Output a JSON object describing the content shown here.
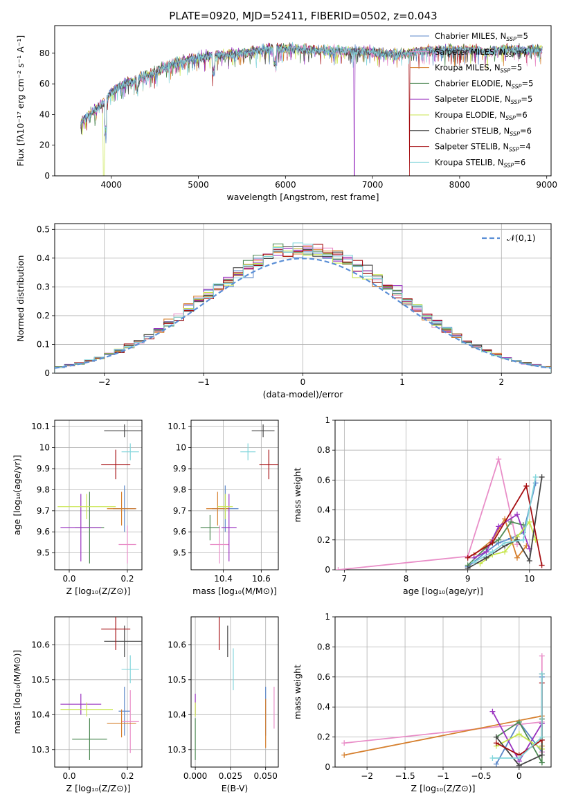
{
  "title": "PLATE=0920, MJD=52411, FIBERID=0502, z=0.043",
  "colors": [
    "#5b87c8",
    "#e98ec8",
    "#d6802f",
    "#4f8a55",
    "#9a33c0",
    "#c8e64e",
    "#444444",
    "#a50e12",
    "#84d6dc"
  ],
  "chart_data": [
    {
      "id": "spectrum",
      "type": "line",
      "xlabel": "wavelength [Angstrom, rest frame]",
      "ylabel": "Flux [fλ10⁻¹⁷ erg cm⁻² s⁻¹ A⁻¹]",
      "xlim": [
        3350,
        9050
      ],
      "ylim": [
        0,
        98
      ],
      "xticks": [
        4000,
        5000,
        6000,
        7000,
        8000,
        9000
      ],
      "yticks": [
        0,
        20,
        40,
        60,
        80
      ],
      "legend_location": "upper right",
      "grid": false,
      "legend": [
        "Chabrier MILES, N_SSP=5",
        "Salpeter MILES, N_SSP=4",
        "Kroupa MILES, N_SSP=5",
        "Chabrier ELODIE, N_SSP=5",
        "Salpeter ELODIE, N_SSP=5",
        "Kroupa ELODIE, N_SSP=6",
        "Chabrier STELIB, N_SSP=6",
        "Salpeter STELIB, N_SSP=4",
        "Kroupa STELIB, N_SSP=6"
      ],
      "continuum": [
        [
          3650,
          35
        ],
        [
          3750,
          40
        ],
        [
          3900,
          47
        ],
        [
          4000,
          55
        ],
        [
          4150,
          60
        ],
        [
          4300,
          63
        ],
        [
          4500,
          68
        ],
        [
          4700,
          73
        ],
        [
          4900,
          76
        ],
        [
          5100,
          78
        ],
        [
          5300,
          79
        ],
        [
          5500,
          80
        ],
        [
          5700,
          82
        ],
        [
          5900,
          83
        ],
        [
          6100,
          83
        ],
        [
          6300,
          82
        ],
        [
          6500,
          82
        ],
        [
          6700,
          81
        ],
        [
          6900,
          81
        ],
        [
          7100,
          80
        ],
        [
          7300,
          79
        ],
        [
          7500,
          81
        ],
        [
          7700,
          82
        ],
        [
          7900,
          82
        ],
        [
          8100,
          82
        ],
        [
          8300,
          81
        ],
        [
          8500,
          82
        ],
        [
          8700,
          82
        ],
        [
          8900,
          82
        ]
      ],
      "drops": [
        [
          3905,
          3925,
          0
        ],
        [
          6790,
          6800,
          0
        ],
        [
          7420,
          7430,
          0
        ]
      ]
    },
    {
      "id": "residuals",
      "type": "histogram",
      "xlabel": "(data-model)/error",
      "ylabel": "Normed distribution",
      "xlim": [
        -2.5,
        2.5
      ],
      "ylim": [
        0,
        0.52
      ],
      "xticks": [
        -2,
        -1,
        0,
        1,
        2
      ],
      "yticks": [
        0.0,
        0.1,
        0.2,
        0.3,
        0.4,
        0.5
      ],
      "grid": true,
      "legend_location": "upper right",
      "reference_label": "𝒩(0,1)",
      "bin_width": 0.1,
      "bin_start": -2.5
    },
    {
      "id": "age_vs_Z",
      "type": "errorbar",
      "xlabel": "Z [log₁₀(Z/Z⊙)]",
      "ylabel": "age  [log₁₀(age/yr)]",
      "xlim": [
        -0.05,
        0.25
      ],
      "ylim": [
        9.42,
        10.13
      ],
      "xticks": [
        0.0,
        0.2
      ],
      "xticklabels": [
        "0.0",
        "0.2"
      ],
      "yticks": [
        9.5,
        9.6,
        9.7,
        9.8,
        9.9,
        10.0,
        10.1
      ],
      "grid": true,
      "points": [
        {
          "x": 0.19,
          "y": 9.71,
          "xerr": 0.04,
          "yerr": 0.11
        },
        {
          "x": 0.2,
          "y": 9.54,
          "xerr": 0.03,
          "yerr": 0.09
        },
        {
          "x": 0.18,
          "y": 9.71,
          "xerr": 0.05,
          "yerr": 0.08
        },
        {
          "x": 0.07,
          "y": 9.62,
          "xerr": 0.05,
          "yerr": 0.17
        },
        {
          "x": 0.04,
          "y": 9.62,
          "xerr": 0.07,
          "yerr": 0.16
        },
        {
          "x": 0.06,
          "y": 9.72,
          "xerr": 0.1,
          "yerr": 0.06
        },
        {
          "x": 0.19,
          "y": 10.08,
          "xerr": 0.07,
          "yerr": 0.03
        },
        {
          "x": 0.16,
          "y": 9.92,
          "xerr": 0.05,
          "yerr": 0.07
        },
        {
          "x": 0.21,
          "y": 9.98,
          "xerr": 0.03,
          "yerr": 0.04
        }
      ]
    },
    {
      "id": "age_vs_mass",
      "type": "errorbar",
      "xlabel": "mass [log₁₀(M/M⊙)]",
      "ylabel": "",
      "xlim": [
        10.23,
        10.69
      ],
      "ylim": [
        9.42,
        10.13
      ],
      "xticks": [
        10.4,
        10.6
      ],
      "xticklabels": [
        "10.4",
        "10.6"
      ],
      "yticks": [
        9.5,
        9.6,
        9.7,
        9.8,
        9.9,
        10.0,
        10.1
      ],
      "grid": true,
      "points": [
        {
          "x": 10.41,
          "y": 9.71,
          "xerr": 0.07,
          "yerr": 0.11
        },
        {
          "x": 10.38,
          "y": 9.54,
          "xerr": 0.05,
          "yerr": 0.09
        },
        {
          "x": 10.37,
          "y": 9.71,
          "xerr": 0.06,
          "yerr": 0.08
        },
        {
          "x": 10.33,
          "y": 9.62,
          "xerr": 0.05,
          "yerr": 0.06
        },
        {
          "x": 10.43,
          "y": 9.62,
          "xerr": 0.04,
          "yerr": 0.16
        },
        {
          "x": 10.41,
          "y": 9.72,
          "xerr": 0.04,
          "yerr": 0.06
        },
        {
          "x": 10.61,
          "y": 10.08,
          "xerr": 0.06,
          "yerr": 0.03
        },
        {
          "x": 10.64,
          "y": 9.92,
          "xerr": 0.05,
          "yerr": 0.07
        },
        {
          "x": 10.53,
          "y": 9.98,
          "xerr": 0.04,
          "yerr": 0.04
        }
      ]
    },
    {
      "id": "weight_vs_age",
      "type": "line",
      "xlabel": "age  [log₁₀(age/yr)]",
      "ylabel": "mass weight",
      "xlim": [
        6.85,
        10.35
      ],
      "ylim": [
        0,
        1.0
      ],
      "xticks": [
        7,
        8,
        9,
        10
      ],
      "yticks": [
        0.0,
        0.2,
        0.4,
        0.6,
        0.8,
        1.0
      ],
      "grid": true,
      "series": [
        {
          "x": [
            9.0,
            9.3,
            9.5,
            9.7,
            9.9,
            10.1
          ],
          "y": [
            0.02,
            0.12,
            0.18,
            0.21,
            0.25,
            0.58
          ]
        },
        {
          "x": [
            6.9,
            9.0,
            9.5,
            9.8
          ],
          "y": [
            0.0,
            0.09,
            0.74,
            0.17
          ]
        },
        {
          "x": [
            9.1,
            9.4,
            9.6,
            9.8,
            9.95
          ],
          "y": [
            0.1,
            0.2,
            0.34,
            0.08,
            0.16
          ]
        },
        {
          "x": [
            9.0,
            9.3,
            9.5,
            9.7,
            9.9
          ],
          "y": [
            0.03,
            0.15,
            0.2,
            0.32,
            0.3
          ]
        },
        {
          "x": [
            9.1,
            9.3,
            9.5,
            9.8,
            10.0
          ],
          "y": [
            0.08,
            0.12,
            0.29,
            0.37,
            0.14
          ]
        },
        {
          "x": [
            9.2,
            9.4,
            9.6,
            9.8,
            10.0,
            10.1
          ],
          "y": [
            0.04,
            0.1,
            0.12,
            0.22,
            0.32,
            0.2
          ]
        },
        {
          "x": [
            9.0,
            9.3,
            9.6,
            9.8,
            10.0,
            10.2
          ],
          "y": [
            0.01,
            0.08,
            0.16,
            0.2,
            0.06,
            0.62
          ]
        },
        {
          "x": [
            9.0,
            9.4,
            9.95,
            10.2
          ],
          "y": [
            0.08,
            0.18,
            0.56,
            0.03
          ]
        },
        {
          "x": [
            9.1,
            9.4,
            9.6,
            9.9,
            10.1
          ],
          "y": [
            0.05,
            0.12,
            0.18,
            0.2,
            0.62
          ]
        }
      ]
    },
    {
      "id": "mass_vs_Z",
      "type": "errorbar",
      "xlabel": "Z [log₁₀(Z/Z⊙)]",
      "ylabel": "mass [log₁₀(M/M⊙)]",
      "xlim": [
        -0.05,
        0.25
      ],
      "ylim": [
        10.25,
        10.68
      ],
      "xticks": [
        0.0,
        0.2
      ],
      "xticklabels": [
        "0.0",
        "0.2"
      ],
      "yticks": [
        10.3,
        10.4,
        10.5,
        10.6
      ],
      "grid": true,
      "points": [
        {
          "x": 0.19,
          "y": 10.41,
          "xerr": 0.02,
          "yerr": 0.07
        },
        {
          "x": 0.21,
          "y": 10.38,
          "xerr": 0.03,
          "yerr": 0.09
        },
        {
          "x": 0.18,
          "y": 10.375,
          "xerr": 0.05,
          "yerr": 0.04
        },
        {
          "x": 0.07,
          "y": 10.33,
          "xerr": 0.06,
          "yerr": 0.06
        },
        {
          "x": 0.04,
          "y": 10.43,
          "xerr": 0.07,
          "yerr": 0.03
        },
        {
          "x": 0.06,
          "y": 10.415,
          "xerr": 0.09,
          "yerr": 0.02
        },
        {
          "x": 0.19,
          "y": 10.61,
          "xerr": 0.07,
          "yerr": 0.045
        },
        {
          "x": 0.16,
          "y": 10.645,
          "xerr": 0.05,
          "yerr": 0.06
        },
        {
          "x": 0.21,
          "y": 10.53,
          "xerr": 0.03,
          "yerr": 0.04
        }
      ]
    },
    {
      "id": "mass_vs_EBV",
      "type": "errorbar",
      "xlabel": "E(B-V)",
      "ylabel": "",
      "xlim": [
        -0.003,
        0.059
      ],
      "ylim": [
        10.25,
        10.68
      ],
      "xticks": [
        0.0,
        0.025,
        0.05
      ],
      "xticklabels": [
        "0.000",
        "0.025",
        "0.050"
      ],
      "yticks": [
        10.3,
        10.4,
        10.5,
        10.6
      ],
      "grid": true,
      "points": [
        {
          "x": 0.05,
          "y": 10.41,
          "xerr": 0,
          "yerr": 0.07
        },
        {
          "x": 0.056,
          "y": 10.42,
          "xerr": 0,
          "yerr": 0.06
        },
        {
          "x": 0.05,
          "y": 10.375,
          "xerr": 0,
          "yerr": 0.07
        },
        {
          "x": 0.0,
          "y": 10.33,
          "xerr": 0,
          "yerr": 0.06
        },
        {
          "x": 0.0,
          "y": 10.43,
          "xerr": 0,
          "yerr": 0.03
        },
        {
          "x": 0.0,
          "y": 10.415,
          "xerr": 0,
          "yerr": 0.02
        },
        {
          "x": 0.023,
          "y": 10.61,
          "xerr": 0,
          "yerr": 0.045
        },
        {
          "x": 0.017,
          "y": 10.645,
          "xerr": 0,
          "yerr": 0.06
        },
        {
          "x": 0.027,
          "y": 10.53,
          "xerr": 0,
          "yerr": 0.06
        }
      ]
    },
    {
      "id": "weight_vs_Z",
      "type": "line",
      "xlabel": "Z [log₁₀(Z/Z⊙)]",
      "ylabel": "mass weight",
      "xlim": [
        -2.42,
        0.42
      ],
      "ylim": [
        0,
        1.0
      ],
      "xticks": [
        -2.0,
        -1.5,
        -1.0,
        -0.5,
        0.0
      ],
      "yticks": [
        0.0,
        0.2,
        0.4,
        0.6,
        0.8,
        1.0
      ],
      "grid": true,
      "series": [
        {
          "x": [
            -0.3,
            0.0,
            0.3,
            0.3
          ],
          "y": [
            0.02,
            0.3,
            0.1,
            0.6
          ]
        },
        {
          "x": [
            -2.3,
            0.3,
            0.3,
            0.3
          ],
          "y": [
            0.16,
            0.3,
            0.1,
            0.74
          ]
        },
        {
          "x": [
            -2.3,
            0.3,
            0.3
          ],
          "y": [
            0.08,
            0.34,
            0.14
          ]
        },
        {
          "x": [
            -0.3,
            0.0,
            0.3,
            0.3
          ],
          "y": [
            0.2,
            0.3,
            0.03,
            0.32
          ]
        },
        {
          "x": [
            -0.35,
            0.0,
            0.3
          ],
          "y": [
            0.37,
            0.04,
            0.29
          ]
        },
        {
          "x": [
            -0.3,
            0.0,
            0.3,
            0.3
          ],
          "y": [
            0.14,
            0.22,
            0.12,
            0.2
          ]
        },
        {
          "x": [
            -0.3,
            0.0,
            0.3,
            0.3
          ],
          "y": [
            0.2,
            0.01,
            0.08,
            0.62
          ]
        },
        {
          "x": [
            -0.3,
            0.0,
            0.3,
            0.3
          ],
          "y": [
            0.16,
            0.08,
            0.18,
            0.56
          ]
        },
        {
          "x": [
            -0.35,
            0.0,
            0.3,
            0.3
          ],
          "y": [
            0.06,
            0.06,
            0.2,
            0.62
          ]
        }
      ]
    }
  ]
}
